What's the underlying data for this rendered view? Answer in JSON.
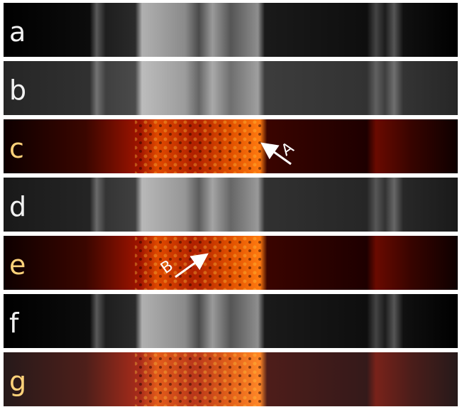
{
  "panels": [
    {
      "label": "a"
    },
    {
      "label": "b"
    },
    {
      "label": "c"
    },
    {
      "label": "d"
    },
    {
      "label": "e"
    },
    {
      "label": "f"
    },
    {
      "label": "g"
    }
  ],
  "annotations": [
    {
      "label": "A"
    },
    {
      "label": "B"
    }
  ]
}
